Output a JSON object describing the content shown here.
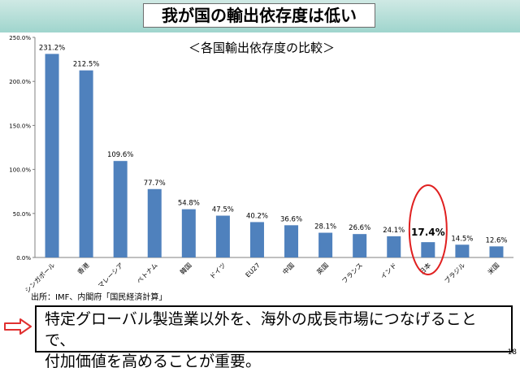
{
  "page": {
    "title": "我が国の輸出依存度は低い",
    "source": "出所：IMF、内閣府「国民経済計算」",
    "message_line1": "特定グローバル製造業以外を、海外の成長市場につなげることで、",
    "message_line2": "付加価値を高めることが重要。",
    "page_number": "18"
  },
  "chart_data": {
    "type": "bar",
    "title": "＜各国輸出依存度の比較＞",
    "categories": [
      "シンガポール",
      "香港",
      "マレーシア",
      "ベトナム",
      "韓国",
      "ドイツ",
      "EU27",
      "中国",
      "英国",
      "フランス",
      "インド",
      "日本",
      "ブラジル",
      "米国"
    ],
    "values": [
      231.2,
      212.5,
      109.6,
      77.7,
      54.8,
      47.5,
      40.2,
      36.6,
      28.1,
      26.6,
      24.1,
      17.4,
      14.5,
      12.6
    ],
    "value_labels": [
      "231.2%",
      "212.5%",
      "109.6%",
      "77.7%",
      "54.8%",
      "47.5%",
      "40.2%",
      "36.6%",
      "28.1%",
      "26.6%",
      "24.1%",
      "17.4%",
      "14.5%",
      "12.6%"
    ],
    "ylim": [
      0,
      250
    ],
    "yticks": [
      "0.0%",
      "50.0%",
      "100.0%",
      "150.0%",
      "200.0%",
      "250.0%"
    ],
    "highlight_index": 11,
    "bar_color": "#4f81bd",
    "highlight_color": "#e02020",
    "grid": false,
    "xlabel": "",
    "ylabel": ""
  }
}
